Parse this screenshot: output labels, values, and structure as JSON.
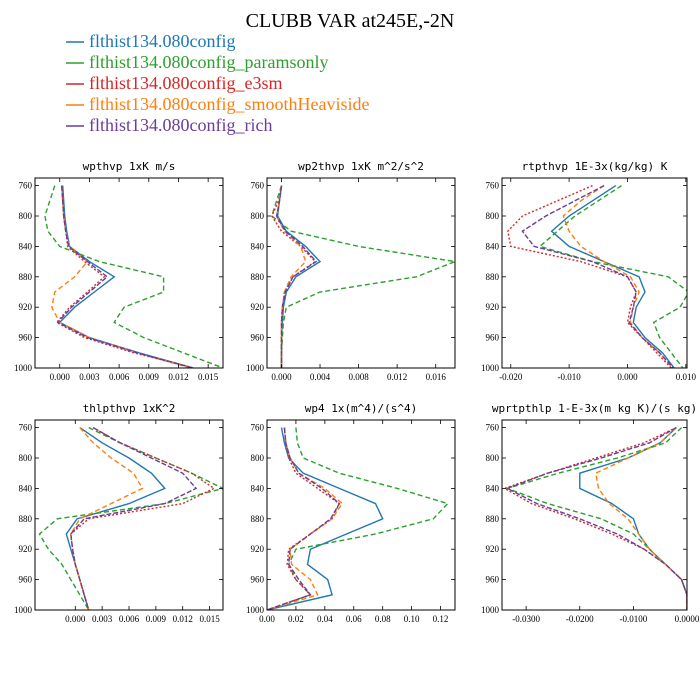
{
  "title": "CLUBB VAR at245E,-2N",
  "legend": [
    {
      "label": "flthist134.080config",
      "color": "#1f77b4",
      "dash": ""
    },
    {
      "label": "flthist134.080config_paramsonly",
      "color": "#2ca02c",
      "dash": "5,3"
    },
    {
      "label": "flthist134.080config_e3sm",
      "color": "#d62728",
      "dash": "2,2"
    },
    {
      "label": "flthist134.080config_smoothHeaviside",
      "color": "#ff7f0e",
      "dash": "5,3"
    },
    {
      "label": "flthist134.080config_rich",
      "color": "#6a3d9a",
      "dash": "5,2"
    }
  ],
  "chart_data": [
    {
      "type": "line",
      "title": "wpthvp  1xK m/s",
      "xlim": [
        -0.0025,
        0.0165
      ],
      "ylim": [
        1000,
        750
      ],
      "xticks": [
        0.0,
        0.003,
        0.006,
        0.009,
        0.012,
        0.015
      ],
      "xtick_labels": [
        "0.000",
        "0.003",
        "0.006",
        "0.009",
        "0.012",
        "0.015"
      ],
      "yticks": [
        760,
        800,
        840,
        880,
        920,
        960,
        1000
      ],
      "y": [
        760,
        780,
        800,
        820,
        840,
        860,
        880,
        900,
        920,
        940,
        960,
        980,
        1000
      ],
      "series": [
        {
          "name": "flthist134.080config",
          "x": [
            0.0003,
            0.0004,
            0.0005,
            0.0007,
            0.001,
            0.003,
            0.0055,
            0.0035,
            0.0015,
            0.0,
            0.003,
            0.008,
            0.0135
          ]
        },
        {
          "name": "flthist134.080config_paramsonly",
          "x": [
            -0.0005,
            -0.001,
            -0.0015,
            -0.0012,
            0.0,
            0.004,
            0.0105,
            0.0105,
            0.0065,
            0.0055,
            0.0085,
            0.0125,
            0.0165
          ]
        },
        {
          "name": "flthist134.080config_e3sm",
          "x": [
            0.0002,
            0.0003,
            0.0004,
            0.0006,
            0.0008,
            0.0025,
            0.0045,
            0.0028,
            0.001,
            -0.0003,
            0.0025,
            0.0075,
            0.0135
          ]
        },
        {
          "name": "flthist134.080config_smoothHeaviside",
          "x": [
            0.0002,
            0.0003,
            0.0004,
            0.0006,
            0.001,
            0.0028,
            0.0015,
            -0.0005,
            -0.0008,
            0.0,
            0.003,
            0.0078,
            0.0132
          ]
        },
        {
          "name": "flthist134.080config_rich",
          "x": [
            0.0002,
            0.0003,
            0.0004,
            0.0006,
            0.0009,
            0.0028,
            0.0048,
            0.003,
            0.0012,
            -0.0002,
            0.0028,
            0.0078,
            0.0135
          ]
        }
      ]
    },
    {
      "type": "line",
      "title": "wp2thvp  1xK m^2/s^2",
      "xlim": [
        -0.0015,
        0.018
      ],
      "ylim": [
        1000,
        750
      ],
      "xticks": [
        0.0,
        0.004,
        0.008,
        0.012,
        0.016
      ],
      "xtick_labels": [
        "0.000",
        "0.004",
        "0.008",
        "0.012",
        "0.016"
      ],
      "yticks": [
        760,
        800,
        840,
        880,
        920,
        960,
        1000
      ],
      "y": [
        760,
        780,
        800,
        820,
        840,
        860,
        880,
        900,
        920,
        940,
        960,
        980,
        1000
      ],
      "series": [
        {
          "name": "flthist134.080config",
          "x": [
            0.0,
            -0.0002,
            -0.0004,
            0.0005,
            0.0025,
            0.004,
            0.0015,
            0.0005,
            0.0002,
            0.0001,
            0.0,
            0.0,
            0.0
          ]
        },
        {
          "name": "flthist134.080config_paramsonly",
          "x": [
            0.0,
            -0.0005,
            -0.001,
            0.001,
            0.008,
            0.018,
            0.014,
            0.004,
            0.0005,
            0.0002,
            0.0001,
            0.0,
            0.0
          ]
        },
        {
          "name": "flthist134.080config_e3sm",
          "x": [
            0.0,
            -0.0003,
            -0.001,
            0.0,
            0.002,
            0.0035,
            0.0012,
            0.0003,
            0.0001,
            0.0,
            0.0,
            0.0,
            0.0
          ]
        },
        {
          "name": "flthist134.080config_smoothHeaviside",
          "x": [
            0.0,
            -0.0002,
            -0.0005,
            0.0003,
            0.002,
            0.0025,
            0.001,
            0.0003,
            0.0001,
            0.0,
            0.0,
            0.0,
            0.0
          ]
        },
        {
          "name": "flthist134.080config_rich",
          "x": [
            0.0,
            -0.0002,
            -0.0005,
            0.0004,
            0.0022,
            0.0036,
            0.0012,
            0.0004,
            0.0001,
            0.0,
            0.0,
            0.0,
            0.0
          ]
        }
      ]
    },
    {
      "type": "line",
      "title": "rtpthvp  1E-3x(kg/kg) K",
      "xlim": [
        -0.0215,
        0.0102
      ],
      "ylim": [
        1000,
        750
      ],
      "xticks": [
        -0.02,
        -0.01,
        0.0,
        0.01
      ],
      "xtick_labels": [
        "-0.020",
        "-0.010",
        "0.000",
        "0.010"
      ],
      "yticks": [
        760,
        800,
        840,
        880,
        920,
        960,
        1000
      ],
      "y": [
        760,
        780,
        800,
        820,
        840,
        860,
        880,
        900,
        920,
        940,
        960,
        980,
        1000
      ],
      "series": [
        {
          "name": "flthist134.080config",
          "x": [
            -0.002,
            -0.006,
            -0.01,
            -0.013,
            -0.01,
            -0.004,
            0.002,
            0.003,
            0.0015,
            0.001,
            0.003,
            0.006,
            0.008
          ]
        },
        {
          "name": "flthist134.080config_paramsonly",
          "x": [
            -0.001,
            -0.005,
            -0.009,
            -0.012,
            -0.015,
            -0.006,
            0.007,
            0.0105,
            0.009,
            0.0045,
            0.0055,
            0.0075,
            0.0095
          ]
        },
        {
          "name": "flthist134.080config_e3sm",
          "x": [
            -0.006,
            -0.012,
            -0.018,
            -0.0205,
            -0.02,
            -0.008,
            0.0,
            0.0015,
            0.0005,
            0.0,
            0.0025,
            0.005,
            0.0075
          ]
        },
        {
          "name": "flthist134.080config_smoothHeaviside",
          "x": [
            -0.004,
            -0.008,
            -0.011,
            -0.01,
            -0.008,
            -0.004,
            0.0005,
            0.002,
            0.001,
            0.0005,
            0.0025,
            0.0055,
            0.0078
          ]
        },
        {
          "name": "flthist134.080config_rich",
          "x": [
            -0.004,
            -0.009,
            -0.014,
            -0.018,
            -0.016,
            -0.006,
            0.0,
            0.0015,
            0.001,
            0.0003,
            0.0025,
            0.0055,
            0.0078
          ]
        }
      ]
    },
    {
      "type": "line",
      "title": "thlpthvp  1xK^2",
      "xlim": [
        -0.0045,
        0.0165
      ],
      "ylim": [
        1000,
        750
      ],
      "xticks": [
        0.0,
        0.003,
        0.006,
        0.009,
        0.012,
        0.015
      ],
      "xtick_labels": [
        "0.000",
        "0.003",
        "0.006",
        "0.009",
        "0.012",
        "0.015"
      ],
      "yticks": [
        760,
        800,
        840,
        880,
        920,
        960,
        1000
      ],
      "y": [
        760,
        780,
        800,
        820,
        840,
        860,
        880,
        900,
        920,
        940,
        960,
        980,
        1000
      ],
      "series": [
        {
          "name": "flthist134.080config",
          "x": [
            0.0005,
            0.003,
            0.006,
            0.0085,
            0.01,
            0.006,
            0.0002,
            -0.001,
            -0.0005,
            0.0,
            0.0005,
            0.001,
            0.0015
          ]
        },
        {
          "name": "flthist134.080config_paramsonly",
          "x": [
            0.0015,
            0.005,
            0.009,
            0.013,
            0.0165,
            0.01,
            -0.002,
            -0.004,
            -0.003,
            -0.0015,
            -0.0005,
            0.0005,
            0.0015
          ]
        },
        {
          "name": "flthist134.080config_e3sm",
          "x": [
            0.002,
            0.005,
            0.009,
            0.013,
            0.0155,
            0.012,
            0.0015,
            -0.0005,
            -0.0003,
            0.0,
            0.0005,
            0.001,
            0.0015
          ]
        },
        {
          "name": "flthist134.080config_smoothHeaviside",
          "x": [
            0.0005,
            0.002,
            0.004,
            0.0065,
            0.0075,
            0.004,
            0.0005,
            -0.0005,
            -0.0003,
            0.0,
            0.0005,
            0.001,
            0.0015
          ]
        },
        {
          "name": "flthist134.080config_rich",
          "x": [
            0.002,
            0.005,
            0.0085,
            0.012,
            0.0135,
            0.01,
            0.001,
            -0.0005,
            -0.0003,
            0.0,
            0.0005,
            0.001,
            0.0015
          ]
        }
      ]
    },
    {
      "type": "line",
      "title": "wp4  1x(m^4)/(s^4)",
      "xlim": [
        0.0,
        0.13
      ],
      "ylim": [
        1000,
        750
      ],
      "xticks": [
        0.0,
        0.02,
        0.04,
        0.06,
        0.08,
        0.1,
        0.12
      ],
      "xtick_labels": [
        "0.00",
        "0.02",
        "0.04",
        "0.06",
        "0.08",
        "0.10",
        "0.12"
      ],
      "yticks": [
        760,
        800,
        840,
        880,
        920,
        960,
        1000
      ],
      "y": [
        760,
        780,
        800,
        820,
        840,
        860,
        880,
        900,
        920,
        940,
        960,
        980,
        1000
      ],
      "series": [
        {
          "name": "flthist134.080config",
          "x": [
            0.01,
            0.012,
            0.015,
            0.025,
            0.05,
            0.075,
            0.08,
            0.055,
            0.03,
            0.028,
            0.042,
            0.045,
            0.0
          ]
        },
        {
          "name": "flthist134.080config_paramsonly",
          "x": [
            0.02,
            0.021,
            0.025,
            0.05,
            0.09,
            0.125,
            0.115,
            0.075,
            0.02,
            0.015,
            0.02,
            0.03,
            0.0
          ]
        },
        {
          "name": "flthist134.080config_e3sm",
          "x": [
            0.012,
            0.013,
            0.015,
            0.02,
            0.035,
            0.05,
            0.045,
            0.03,
            0.015,
            0.014,
            0.02,
            0.03,
            0.0
          ]
        },
        {
          "name": "flthist134.080config_smoothHeaviside",
          "x": [
            0.012,
            0.013,
            0.016,
            0.022,
            0.04,
            0.052,
            0.045,
            0.03,
            0.016,
            0.017,
            0.03,
            0.035,
            0.0
          ]
        },
        {
          "name": "flthist134.080config_rich",
          "x": [
            0.012,
            0.013,
            0.016,
            0.022,
            0.038,
            0.05,
            0.044,
            0.03,
            0.016,
            0.015,
            0.022,
            0.03,
            0.0
          ]
        }
      ]
    },
    {
      "type": "line",
      "title": "wprtpthlp  1-E-3x(m kg K)/(s kg)",
      "xlim": [
        -0.0345,
        0.0
      ],
      "ylim": [
        1000,
        750
      ],
      "xticks": [
        -0.03,
        -0.02,
        -0.01,
        0.0
      ],
      "xtick_labels": [
        "-0.0300",
        "-0.0200",
        "-0.0100",
        "0.0000"
      ],
      "yticks": [
        760,
        800,
        840,
        880,
        920,
        960,
        1000
      ],
      "y": [
        760,
        780,
        800,
        820,
        840,
        860,
        880,
        900,
        920,
        940,
        960,
        980,
        1000
      ],
      "series": [
        {
          "name": "flthist134.080config",
          "x": [
            -0.002,
            -0.005,
            -0.011,
            -0.02,
            -0.02,
            -0.014,
            -0.01,
            -0.009,
            -0.007,
            -0.004,
            -0.001,
            0.0,
            0.0
          ]
        },
        {
          "name": "flthist134.080config_paramsonly",
          "x": [
            -0.001,
            -0.004,
            -0.013,
            -0.024,
            -0.0335,
            -0.026,
            -0.016,
            -0.01,
            -0.007,
            -0.004,
            -0.001,
            0.0,
            0.0
          ]
        },
        {
          "name": "flthist134.080config_e3sm",
          "x": [
            -0.002,
            -0.008,
            -0.017,
            -0.026,
            -0.034,
            -0.029,
            -0.021,
            -0.014,
            -0.008,
            -0.004,
            -0.001,
            0.0,
            0.0
          ]
        },
        {
          "name": "flthist134.080config_smoothHeaviside",
          "x": [
            -0.002,
            -0.005,
            -0.011,
            -0.017,
            -0.0165,
            -0.0145,
            -0.011,
            -0.009,
            -0.007,
            -0.004,
            -0.001,
            0.0,
            0.0
          ]
        },
        {
          "name": "flthist134.080config_rich",
          "x": [
            -0.002,
            -0.007,
            -0.016,
            -0.026,
            -0.0335,
            -0.028,
            -0.02,
            -0.013,
            -0.008,
            -0.004,
            -0.001,
            0.0,
            0.0
          ]
        }
      ]
    }
  ]
}
